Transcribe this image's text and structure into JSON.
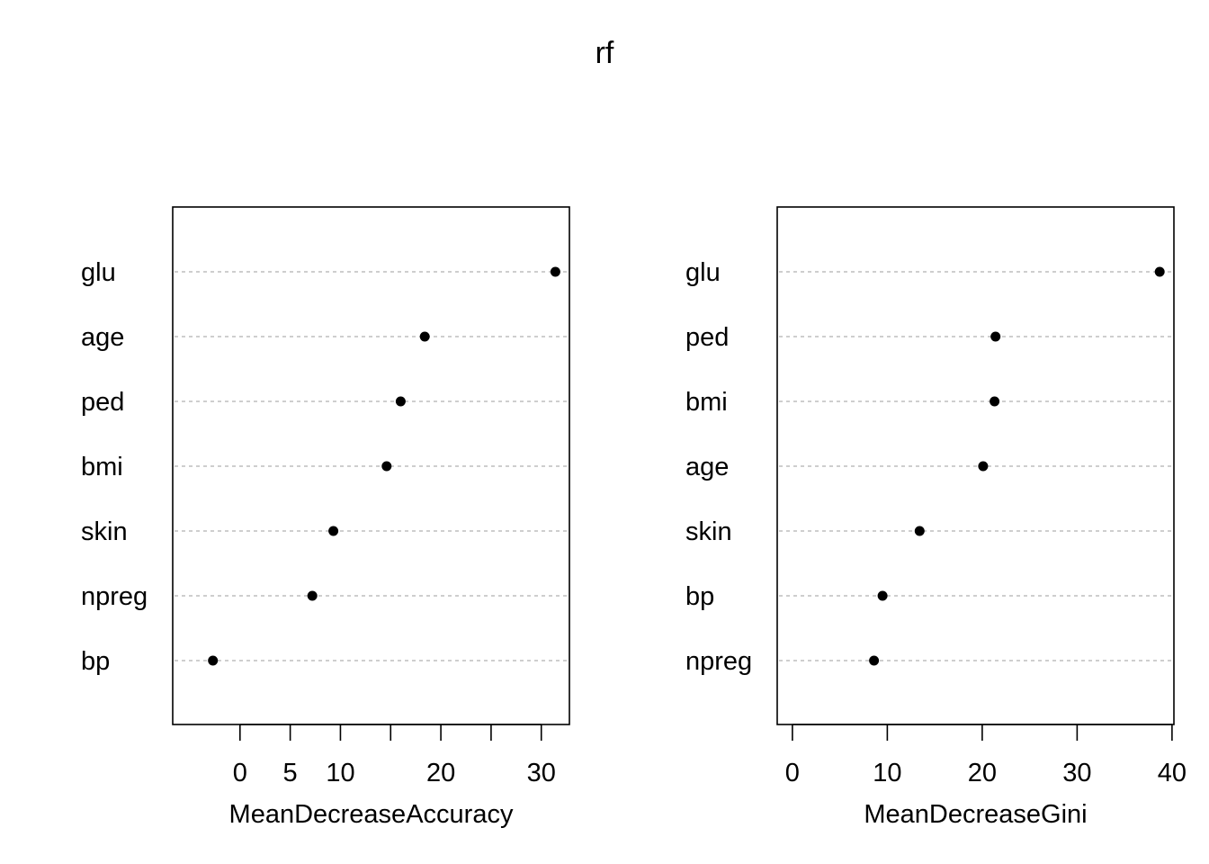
{
  "title": "rf",
  "colors": {
    "dot": "#000000",
    "guide": "#bebebe",
    "frame": "#000000"
  },
  "chart_data": [
    {
      "type": "scatter",
      "subtype": "dotchart",
      "xlabel": "MeanDecreaseAccuracy",
      "ylabel": "",
      "categories": [
        "glu",
        "age",
        "ped",
        "bmi",
        "skin",
        "npreg",
        "bp"
      ],
      "values": [
        31.4,
        18.4,
        16.0,
        14.6,
        9.3,
        7.2,
        -2.7
      ],
      "xlim": [
        -6.7,
        32.8
      ],
      "ticks": [
        0,
        5,
        10,
        20,
        30
      ],
      "tick_marks": [
        0,
        5,
        10,
        15,
        20,
        25,
        30
      ],
      "grid": "dotted horizontal guides"
    },
    {
      "type": "scatter",
      "subtype": "dotchart",
      "xlabel": "MeanDecreaseGini",
      "ylabel": "",
      "categories": [
        "glu",
        "ped",
        "bmi",
        "age",
        "skin",
        "bp",
        "npreg"
      ],
      "values": [
        38.7,
        21.4,
        21.3,
        20.1,
        13.4,
        9.5,
        8.6
      ],
      "xlim": [
        -1.6,
        40.2
      ],
      "ticks": [
        0,
        10,
        20,
        30,
        40
      ],
      "tick_marks": [
        0,
        10,
        20,
        30,
        40
      ],
      "grid": "dotted horizontal guides"
    }
  ]
}
